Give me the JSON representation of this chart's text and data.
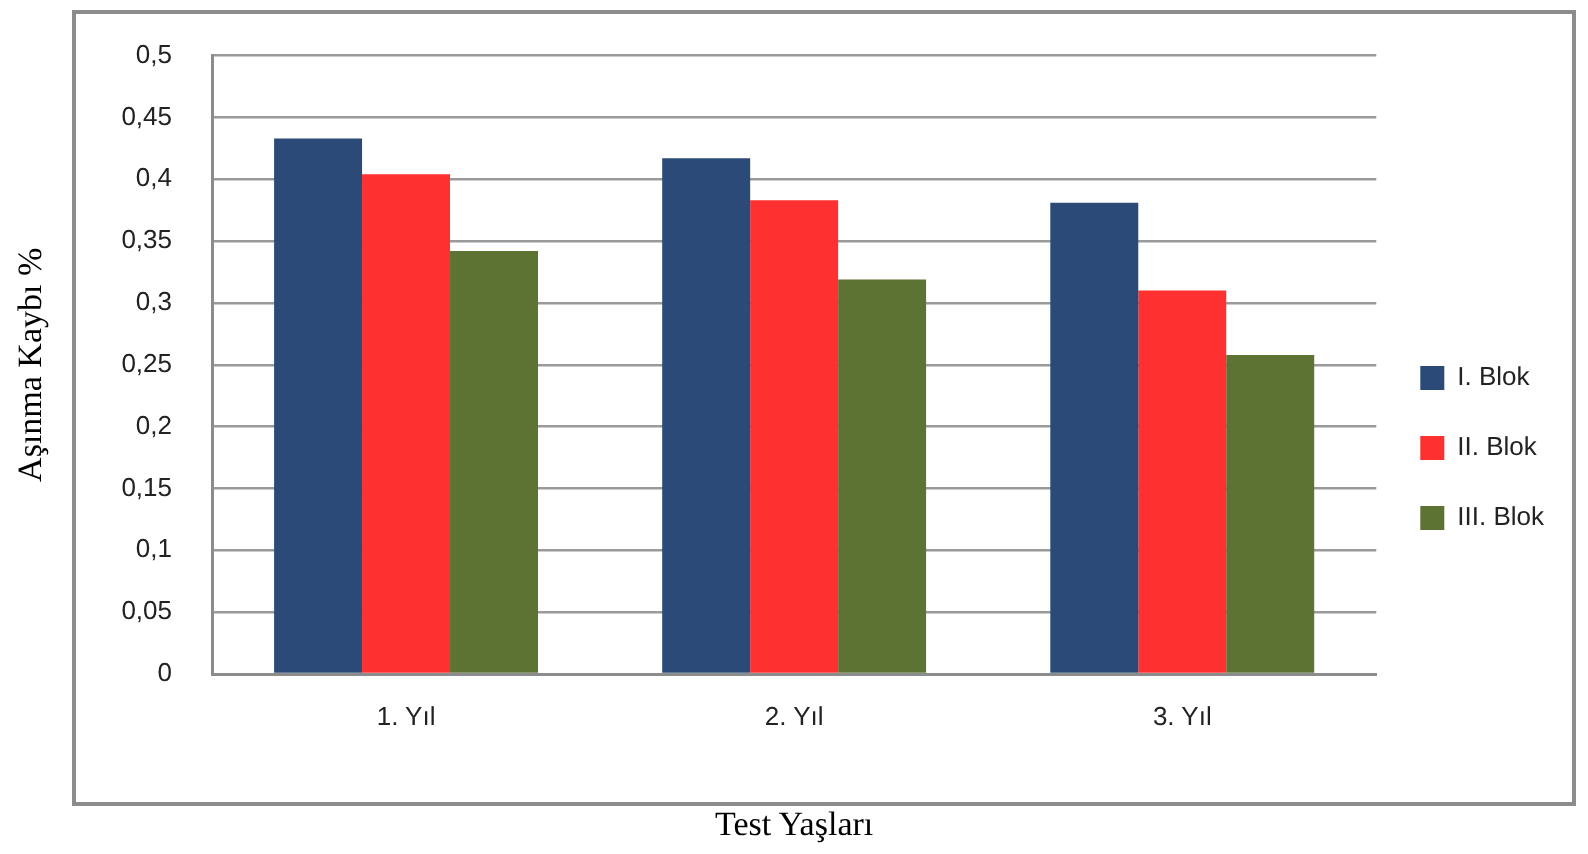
{
  "chart_data": {
    "type": "bar",
    "xlabel": "Test Yaşları",
    "ylabel": "Aşınma Kaybı %",
    "categories": [
      "1. Yıl",
      "2. Yıl",
      "3. Yıl"
    ],
    "series": [
      {
        "name": "I. Blok",
        "color": "#2c4a78",
        "values": [
          0.433,
          0.417,
          0.381
        ]
      },
      {
        "name": "II. Blok",
        "color": "#ff3030",
        "values": [
          0.404,
          0.383,
          0.31
        ]
      },
      {
        "name": "III. Blok",
        "color": "#5d7334",
        "values": [
          0.342,
          0.319,
          0.258
        ]
      }
    ],
    "ylim": [
      0,
      0.5
    ],
    "yticks": [
      0,
      {
        "value": 0.05,
        "label": "0,05"
      },
      {
        "value": 0.1,
        "label": "0,1"
      },
      {
        "value": 0.15,
        "label": "0,15"
      },
      {
        "value": 0.2,
        "label": "0,2"
      },
      {
        "value": 0.25,
        "label": "0,25"
      },
      {
        "value": 0.3,
        "label": "0,3"
      },
      {
        "value": 0.35,
        "label": "0,35"
      },
      {
        "value": 0.4,
        "label": "0,4"
      },
      {
        "value": 0.45,
        "label": "0,45"
      },
      {
        "value": 0.5,
        "label": "0,5"
      }
    ],
    "grid": "y",
    "legend": "right"
  }
}
